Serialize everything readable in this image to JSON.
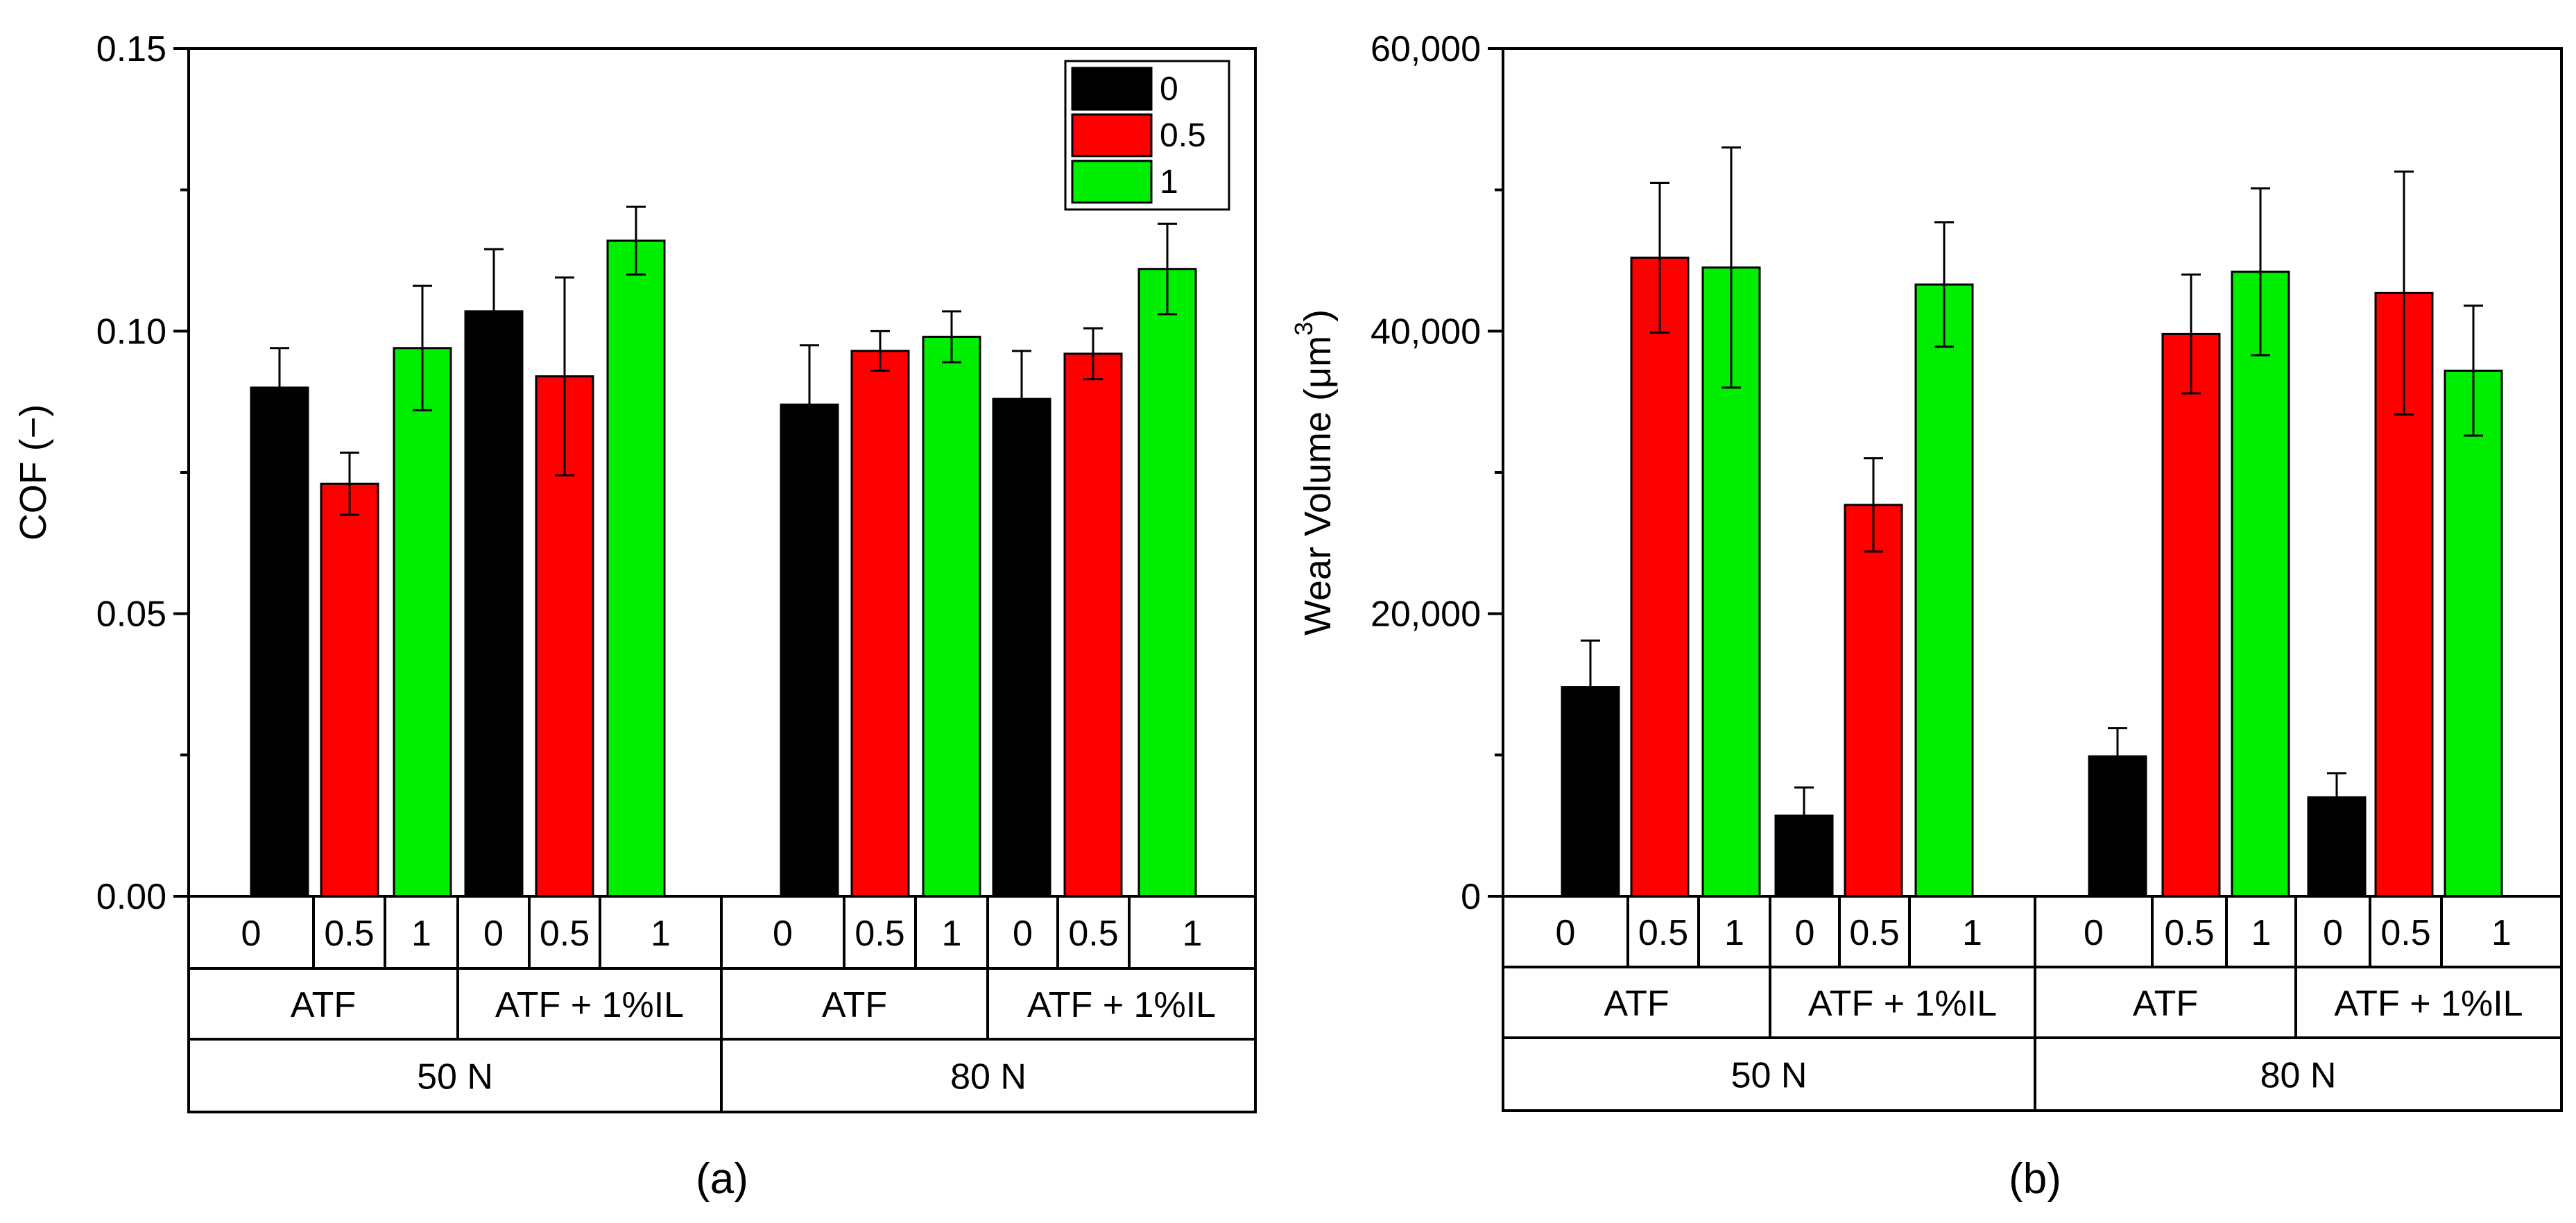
{
  "colors": {
    "series_0": "#000000",
    "series_0_5": "#ff0000",
    "series_1": "#00ee00",
    "axis": "#000000"
  },
  "chart_data": [
    {
      "id": "a",
      "type": "bar",
      "panel_label": "(a)",
      "ylabel": "COF (−)",
      "ylim": [
        0,
        0.15
      ],
      "yticks": [
        0.0,
        0.05,
        0.1,
        0.15
      ],
      "ytick_labels": [
        "0.00",
        "0.05",
        "0.10",
        "0.15"
      ],
      "legend": {
        "position": "top-right",
        "entries": [
          "0",
          "0.5",
          "1"
        ]
      },
      "category_rows": [
        [
          "0",
          "0.5",
          "1",
          "0",
          "0.5",
          "1",
          "0",
          "0.5",
          "1",
          "0",
          "0.5",
          "1"
        ],
        [
          "ATF",
          "ATF + 1%IL",
          "ATF",
          "ATF + 1%IL"
        ],
        [
          "50 N",
          "80 N"
        ]
      ],
      "groups": [
        {
          "load": "50 N",
          "lubricant": "ATF",
          "series": [
            "0",
            "0.5",
            "1"
          ],
          "values": [
            0.09,
            0.073,
            0.097
          ],
          "errors": [
            0.007,
            0.0055,
            0.011
          ]
        },
        {
          "load": "50 N",
          "lubricant": "ATF + 1%IL",
          "series": [
            "0",
            "0.5",
            "1"
          ],
          "values": [
            0.1035,
            0.092,
            0.116
          ],
          "errors": [
            0.011,
            0.0175,
            0.006
          ]
        },
        {
          "load": "80 N",
          "lubricant": "ATF",
          "series": [
            "0",
            "0.5",
            "1"
          ],
          "values": [
            0.087,
            0.0965,
            0.099
          ],
          "errors": [
            0.0105,
            0.0035,
            0.0045
          ]
        },
        {
          "load": "80 N",
          "lubricant": "ATF + 1%IL",
          "series": [
            "0",
            "0.5",
            "1"
          ],
          "values": [
            0.088,
            0.096,
            0.111
          ],
          "errors": [
            0.0085,
            0.0045,
            0.008
          ]
        }
      ]
    },
    {
      "id": "b",
      "type": "bar",
      "panel_label": "(b)",
      "ylabel": "Wear Volume (μm",
      "ylabel_sup": "3",
      "ylabel_end": ")",
      "ylim": [
        0,
        60000
      ],
      "yticks": [
        0,
        20000,
        40000,
        60000
      ],
      "ytick_labels": [
        "0",
        "20,000",
        "40,000",
        "60,000"
      ],
      "category_rows": [
        [
          "0",
          "0.5",
          "1",
          "0",
          "0.5",
          "1",
          "0",
          "0.5",
          "1",
          "0",
          "0.5",
          "1"
        ],
        [
          "ATF",
          "ATF + 1%IL",
          "ATF",
          "ATF + 1%IL"
        ],
        [
          "50 N",
          "80 N"
        ]
      ],
      "groups": [
        {
          "load": "50 N",
          "lubricant": "ATF",
          "series": [
            "0",
            "0.5",
            "1"
          ],
          "values": [
            14800,
            45200,
            44500
          ],
          "errors": [
            3300,
            5300,
            8500
          ]
        },
        {
          "load": "50 N",
          "lubricant": "ATF + 1%IL",
          "series": [
            "0",
            "0.5",
            "1"
          ],
          "values": [
            5700,
            27700,
            43300
          ],
          "errors": [
            2000,
            3300,
            4400
          ]
        },
        {
          "load": "80 N",
          "lubricant": "ATF",
          "series": [
            "0",
            "0.5",
            "1"
          ],
          "values": [
            9900,
            39800,
            44200
          ],
          "errors": [
            2000,
            4200,
            5900
          ]
        },
        {
          "load": "80 N",
          "lubricant": "ATF + 1%IL",
          "series": [
            "0",
            "0.5",
            "1"
          ],
          "values": [
            7000,
            42700,
            37200
          ],
          "errors": [
            1700,
            8600,
            4600
          ]
        }
      ]
    }
  ]
}
